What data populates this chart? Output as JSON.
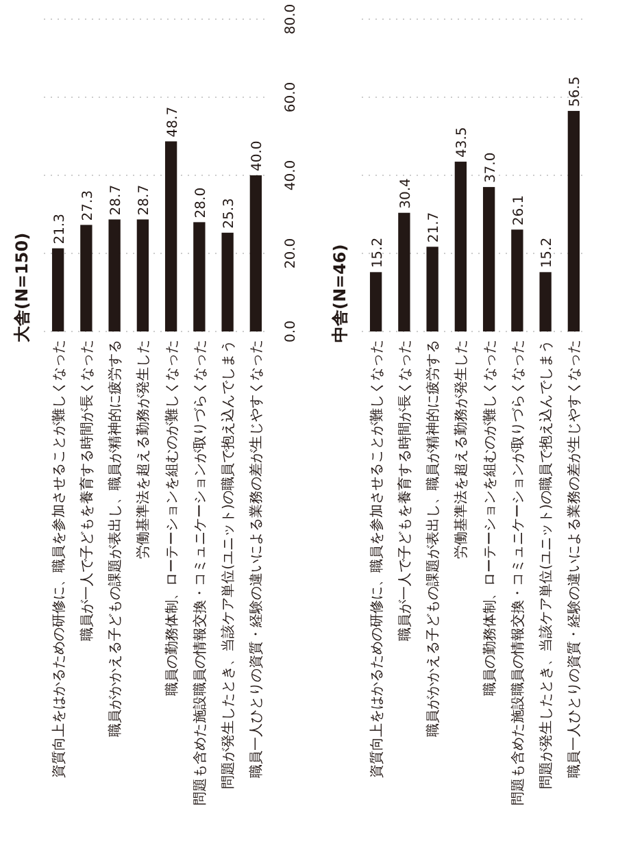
{
  "chart_data": [
    {
      "type": "bar",
      "title": "大舎(N=150)",
      "categories": [
        "資質向上をはかるための研修に、職員を参加させることが難しくなった",
        "職員が一人で子どもを養育する時間が長くなった",
        "職員がかかえる子どもの課題が表出し、職員が精神的に疲労する",
        "労働基準法を超える勤務が発生した",
        "職員の勤務体制、ローテーションを組むのが難しくなった",
        "問題も含めた施設職員の情報交換・コミュニケーションが取りづらくなった",
        "問題が発生したとき、当該ケア単位(ユニット)の職員で抱え込んでしまう",
        "職員一人ひとりの資質・経験の違いによる業務の差が生じやすくなった"
      ],
      "values": [
        21.3,
        27.3,
        28.7,
        28.7,
        48.7,
        28.0,
        25.3,
        40.0
      ],
      "value_labels": [
        "21.3",
        "27.3",
        "28.7",
        "28.7",
        "48.7",
        "28.0",
        "25.3",
        "40.0"
      ],
      "color": "#231815",
      "ylim": [
        0,
        80
      ],
      "yticks": [
        {
          "value": 0,
          "label": "0.0"
        },
        {
          "value": 20,
          "label": "20.0"
        },
        {
          "value": 40,
          "label": "40.0"
        },
        {
          "value": 60,
          "label": "60.0"
        },
        {
          "value": 80,
          "label": "80.0"
        }
      ],
      "grid": "y"
    },
    {
      "type": "bar",
      "title": "中舎(N=46)",
      "categories": [
        "資質向上をはかるための研修に、職員を参加させることが難しくなった",
        "職員が一人で子どもを養育する時間が長くなった",
        "職員がかかえる子どもの課題が表出し、職員が精神的に疲労する",
        "労働基準法を超える勤務が発生した",
        "職員の勤務体制、ローテーションを組むのが難しくなった",
        "問題も含めた施設職員の情報交換・コミュニケーションが取りづらくなった",
        "問題が発生したとき、当該ケア単位(ユニット)の職員で抱え込んでしまう",
        "職員一人ひとりの資質・経験の違いによる業務の差が生じやすくなった"
      ],
      "values": [
        15.2,
        30.4,
        21.7,
        43.5,
        37.0,
        26.1,
        15.2,
        56.5
      ],
      "value_labels": [
        "15.2",
        "30.4",
        "21.7",
        "43.5",
        "37.0",
        "26.1",
        "15.2",
        "56.5"
      ],
      "color": "#231815",
      "ylim": [
        0,
        80
      ],
      "yticks": [
        {
          "value": 0,
          "label": null
        },
        {
          "value": 20,
          "label": null
        },
        {
          "value": 40,
          "label": null
        },
        {
          "value": 60,
          "label": null
        },
        {
          "value": 80,
          "label": null
        }
      ],
      "grid": "y",
      "tick_labels": "x"
    }
  ]
}
